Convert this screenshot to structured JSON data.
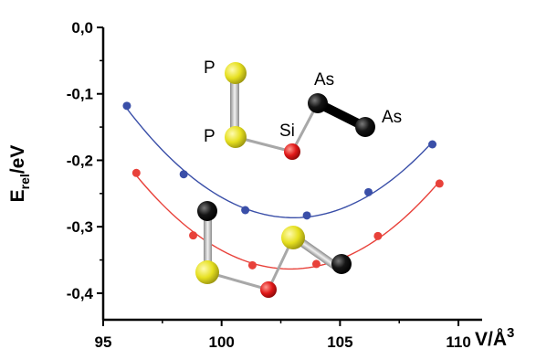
{
  "chart_data": {
    "type": "line",
    "xlabel": "V/Å³",
    "xlabel_parts": {
      "main": "V/Å",
      "sup": "3"
    },
    "ylabel": "Erel/eV",
    "ylabel_parts": {
      "main": "E",
      "sub": "rel",
      "rest": "/eV"
    },
    "xlim": [
      95,
      111
    ],
    "ylim": [
      -0.44,
      0.0
    ],
    "xticks": [
      "95",
      "100",
      "105",
      "110"
    ],
    "yticks": [
      "0,0",
      "-0,1",
      "-0,2",
      "-0,3",
      "-0,4"
    ],
    "grid": false,
    "series": [
      {
        "color": "#3a4fa8",
        "x": [
          96.0,
          98.4,
          101.0,
          103.6,
          106.2,
          108.9
        ],
        "y": [
          -0.118,
          -0.221,
          -0.275,
          -0.283,
          -0.248,
          -0.176
        ]
      },
      {
        "color": "#e8413a",
        "x": [
          96.4,
          98.8,
          101.3,
          104.0,
          106.6,
          109.2
        ],
        "y": [
          -0.219,
          -0.313,
          -0.358,
          -0.356,
          -0.314,
          -0.235
        ]
      }
    ],
    "annotations": {
      "labels": [
        "P",
        "P",
        "Si",
        "As",
        "As"
      ]
    }
  },
  "colors": {
    "phosphorus": "#e6e020",
    "silicon": "#e01818",
    "arsenic": "#111111",
    "bond": "#c0c0c0"
  }
}
